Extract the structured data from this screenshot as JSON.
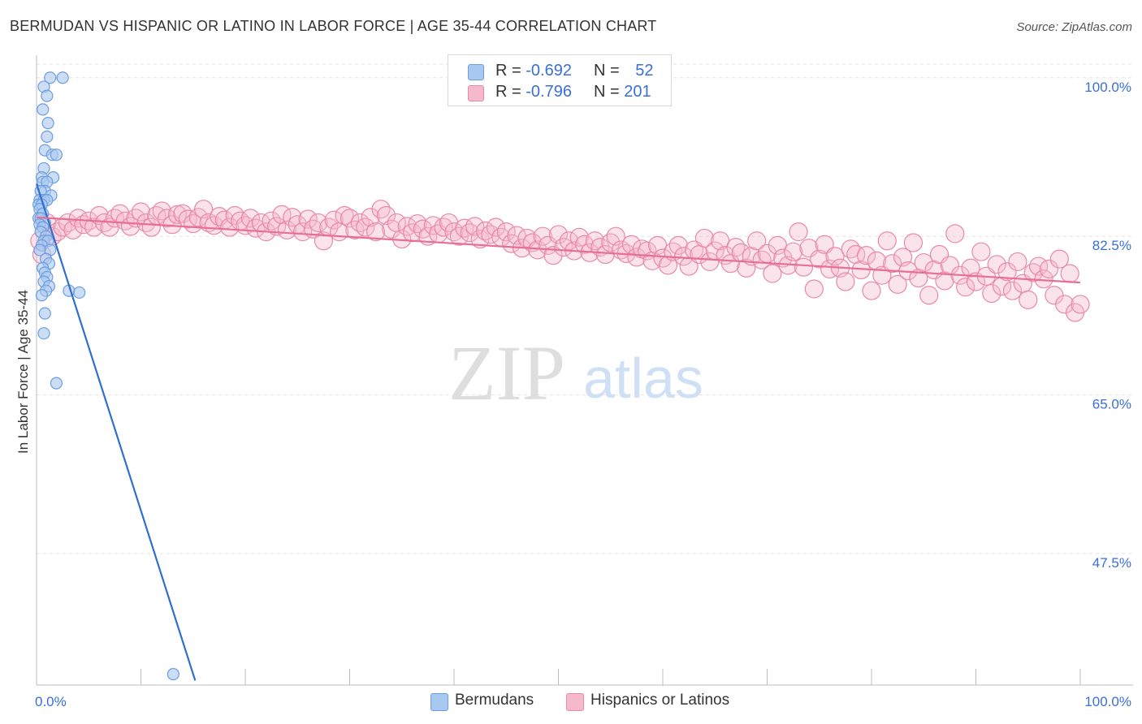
{
  "title": "BERMUDAN VS HISPANIC OR LATINO IN LABOR FORCE | AGE 35-44 CORRELATION CHART",
  "source": "Source: ZipAtlas.com",
  "watermark": {
    "zip": "ZIP",
    "atlas": "atlas"
  },
  "legend": {
    "rows": [
      {
        "r_label": "R = ",
        "r_value": "-0.692",
        "n_label": "N = ",
        "n_value": "52",
        "color": "#a9c8f0",
        "border": "#6d9de0"
      },
      {
        "r_label": "R = ",
        "r_value": "-0.796",
        "n_label": "N = ",
        "n_value": "201",
        "color": "#f6b9cc",
        "border": "#e889a7"
      }
    ]
  },
  "bottom_legend": [
    {
      "label": "Bermudans",
      "color": "#a9c8f0",
      "border": "#6d9de0"
    },
    {
      "label": "Hispanics or Latinos",
      "color": "#f6b9cc",
      "border": "#e889a7"
    }
  ],
  "chart_data": {
    "type": "scatter",
    "xlabel": "",
    "ylabel": "In Labor Force | Age 35-44",
    "xlim": [
      0,
      100
    ],
    "ylim": [
      33.0,
      101.5
    ],
    "x_tick_labels": [
      "0.0%",
      "100.0%"
    ],
    "y_ticks": [
      47.5,
      65.0,
      82.5,
      100.0
    ],
    "y_tick_labels": [
      "47.5%",
      "65.0%",
      "82.5%",
      "100.0%"
    ],
    "grid": true,
    "series": [
      {
        "name": "Bermudans",
        "color": "#6d9de0",
        "fill": "#a9c8f0",
        "line_color": "#2f6fd0",
        "trend": {
          "x": [
            0.0,
            15.2
          ],
          "y": [
            88.3,
            33.5
          ]
        },
        "points": [
          [
            1.3,
            100.0
          ],
          [
            2.5,
            100.0
          ],
          [
            0.7,
            99.0
          ],
          [
            1.0,
            98.0
          ],
          [
            0.6,
            96.5
          ],
          [
            1.1,
            95.0
          ],
          [
            1.0,
            93.5
          ],
          [
            0.8,
            92.0
          ],
          [
            1.5,
            91.5
          ],
          [
            1.9,
            91.5
          ],
          [
            0.7,
            90.0
          ],
          [
            0.5,
            89.0
          ],
          [
            1.6,
            89.0
          ],
          [
            0.6,
            88.5
          ],
          [
            1.0,
            88.5
          ],
          [
            0.8,
            87.5
          ],
          [
            0.4,
            87.5
          ],
          [
            1.4,
            87.0
          ],
          [
            0.3,
            86.5
          ],
          [
            0.7,
            86.5
          ],
          [
            1.0,
            86.5
          ],
          [
            0.2,
            86.0
          ],
          [
            0.5,
            86.0
          ],
          [
            0.3,
            85.5
          ],
          [
            0.6,
            85.0
          ],
          [
            0.2,
            84.5
          ],
          [
            0.4,
            84.5
          ],
          [
            0.8,
            84.0
          ],
          [
            0.3,
            83.8
          ],
          [
            0.6,
            83.5
          ],
          [
            0.4,
            83.0
          ],
          [
            0.9,
            82.5
          ],
          [
            0.7,
            82.0
          ],
          [
            1.1,
            82.0
          ],
          [
            0.5,
            81.5
          ],
          [
            1.3,
            81.0
          ],
          [
            0.3,
            81.0
          ],
          [
            0.9,
            80.0
          ],
          [
            1.2,
            79.5
          ],
          [
            0.6,
            79.0
          ],
          [
            0.8,
            78.5
          ],
          [
            1.0,
            78.0
          ],
          [
            0.7,
            77.5
          ],
          [
            1.2,
            77.0
          ],
          [
            0.9,
            76.5
          ],
          [
            0.5,
            76.0
          ],
          [
            3.1,
            76.5
          ],
          [
            4.1,
            76.3
          ],
          [
            0.8,
            74.0
          ],
          [
            0.7,
            71.8
          ],
          [
            1.9,
            66.3
          ],
          [
            13.1,
            34.2
          ]
        ]
      },
      {
        "name": "Hispanics or Latinos",
        "color": "#e889a7",
        "fill": "#f6b9cc",
        "line_color": "#e56f97",
        "trend": {
          "x": [
            0.0,
            100.0
          ],
          "y": [
            84.6,
            77.4
          ]
        },
        "points": [
          [
            0.3,
            82.0
          ],
          [
            0.5,
            80.5
          ],
          [
            1.0,
            84.0
          ],
          [
            1.5,
            82.5
          ],
          [
            2.0,
            83.0
          ],
          [
            2.5,
            83.5
          ],
          [
            3.0,
            84.0
          ],
          [
            3.5,
            83.2
          ],
          [
            4.0,
            84.5
          ],
          [
            4.5,
            83.8
          ],
          [
            5.0,
            84.2
          ],
          [
            5.5,
            83.5
          ],
          [
            6.0,
            84.8
          ],
          [
            6.5,
            84.0
          ],
          [
            7.0,
            83.5
          ],
          [
            7.5,
            84.5
          ],
          [
            8.0,
            85.0
          ],
          [
            8.5,
            84.2
          ],
          [
            9.0,
            83.6
          ],
          [
            9.5,
            84.5
          ],
          [
            10.0,
            85.2
          ],
          [
            10.5,
            84.0
          ],
          [
            11.0,
            83.5
          ],
          [
            11.5,
            84.8
          ],
          [
            12.0,
            85.3
          ],
          [
            12.5,
            84.5
          ],
          [
            13.0,
            83.8
          ],
          [
            13.5,
            84.9
          ],
          [
            14.0,
            85.0
          ],
          [
            14.5,
            84.4
          ],
          [
            15.0,
            83.9
          ],
          [
            15.5,
            84.6
          ],
          [
            16.0,
            85.5
          ],
          [
            16.5,
            84.0
          ],
          [
            17.0,
            83.7
          ],
          [
            17.5,
            84.7
          ],
          [
            18.0,
            84.3
          ],
          [
            18.5,
            83.5
          ],
          [
            19.0,
            84.8
          ],
          [
            19.5,
            84.2
          ],
          [
            20.0,
            83.7
          ],
          [
            20.5,
            84.5
          ],
          [
            21.0,
            83.4
          ],
          [
            21.5,
            84.0
          ],
          [
            22.0,
            83.0
          ],
          [
            22.5,
            84.2
          ],
          [
            23.0,
            83.6
          ],
          [
            23.5,
            84.9
          ],
          [
            24.0,
            83.2
          ],
          [
            24.5,
            84.6
          ],
          [
            25.0,
            83.8
          ],
          [
            25.5,
            83.0
          ],
          [
            26.0,
            84.4
          ],
          [
            26.5,
            83.3
          ],
          [
            27.0,
            84.0
          ],
          [
            27.5,
            82.0
          ],
          [
            28.0,
            83.5
          ],
          [
            28.5,
            84.3
          ],
          [
            29.0,
            83.0
          ],
          [
            29.5,
            84.8
          ],
          [
            30.0,
            84.5
          ],
          [
            30.5,
            83.2
          ],
          [
            31.0,
            84.0
          ],
          [
            31.5,
            83.5
          ],
          [
            32.0,
            84.6
          ],
          [
            32.5,
            83.0
          ],
          [
            33.0,
            85.5
          ],
          [
            33.5,
            84.8
          ],
          [
            34.0,
            83.3
          ],
          [
            34.5,
            84.0
          ],
          [
            35.0,
            82.2
          ],
          [
            35.5,
            83.6
          ],
          [
            36.0,
            82.9
          ],
          [
            36.5,
            83.9
          ],
          [
            37.0,
            83.3
          ],
          [
            37.5,
            82.5
          ],
          [
            38.0,
            83.7
          ],
          [
            38.5,
            82.8
          ],
          [
            39.0,
            83.5
          ],
          [
            39.5,
            84.0
          ],
          [
            40.0,
            83.0
          ],
          [
            40.5,
            82.5
          ],
          [
            41.0,
            83.4
          ],
          [
            41.5,
            82.9
          ],
          [
            42.0,
            83.6
          ],
          [
            42.5,
            82.2
          ],
          [
            43.0,
            83.1
          ],
          [
            43.5,
            82.7
          ],
          [
            44.0,
            83.5
          ],
          [
            44.5,
            82.4
          ],
          [
            45.0,
            83.0
          ],
          [
            45.5,
            81.7
          ],
          [
            46.0,
            82.6
          ],
          [
            46.5,
            81.2
          ],
          [
            47.0,
            82.3
          ],
          [
            47.5,
            81.8
          ],
          [
            48.0,
            81.0
          ],
          [
            48.5,
            82.5
          ],
          [
            49.0,
            81.5
          ],
          [
            49.5,
            80.4
          ],
          [
            50.0,
            82.7
          ],
          [
            50.5,
            81.3
          ],
          [
            51.0,
            82.0
          ],
          [
            51.5,
            80.9
          ],
          [
            52.0,
            82.4
          ],
          [
            52.5,
            81.6
          ],
          [
            53.0,
            80.7
          ],
          [
            53.5,
            82.0
          ],
          [
            54.0,
            81.3
          ],
          [
            54.5,
            80.5
          ],
          [
            55.0,
            81.8
          ],
          [
            55.5,
            82.5
          ],
          [
            56.0,
            81.0
          ],
          [
            56.5,
            80.6
          ],
          [
            57.0,
            81.6
          ],
          [
            57.5,
            80.2
          ],
          [
            58.0,
            81.1
          ],
          [
            58.5,
            80.9
          ],
          [
            59.0,
            79.8
          ],
          [
            59.5,
            81.5
          ],
          [
            60.0,
            80.1
          ],
          [
            60.5,
            79.3
          ],
          [
            61.0,
            80.8
          ],
          [
            61.5,
            81.5
          ],
          [
            62.0,
            80.3
          ],
          [
            62.5,
            79.2
          ],
          [
            63.0,
            81.0
          ],
          [
            63.5,
            80.5
          ],
          [
            64.0,
            82.3
          ],
          [
            64.5,
            79.7
          ],
          [
            65.0,
            80.9
          ],
          [
            65.5,
            82.0
          ],
          [
            66.0,
            80.4
          ],
          [
            66.5,
            79.5
          ],
          [
            67.0,
            81.3
          ],
          [
            67.5,
            80.7
          ],
          [
            68.0,
            79.0
          ],
          [
            68.5,
            80.3
          ],
          [
            69.0,
            82.0
          ],
          [
            69.5,
            79.9
          ],
          [
            70.0,
            80.6
          ],
          [
            70.5,
            78.4
          ],
          [
            71.0,
            81.5
          ],
          [
            71.5,
            80.1
          ],
          [
            72.0,
            79.3
          ],
          [
            72.5,
            80.8
          ],
          [
            73.0,
            83.0
          ],
          [
            73.5,
            79.1
          ],
          [
            74.0,
            81.2
          ],
          [
            74.5,
            76.7
          ],
          [
            75.0,
            80.0
          ],
          [
            75.5,
            81.6
          ],
          [
            76.0,
            78.9
          ],
          [
            76.5,
            80.3
          ],
          [
            77.0,
            79.0
          ],
          [
            77.5,
            77.5
          ],
          [
            78.0,
            81.1
          ],
          [
            78.5,
            80.5
          ],
          [
            79.0,
            78.8
          ],
          [
            79.5,
            80.4
          ],
          [
            80.0,
            76.5
          ],
          [
            80.5,
            79.8
          ],
          [
            81.0,
            78.2
          ],
          [
            81.5,
            82.0
          ],
          [
            82.0,
            79.5
          ],
          [
            82.5,
            77.2
          ],
          [
            83.0,
            80.2
          ],
          [
            83.5,
            78.7
          ],
          [
            84.0,
            81.8
          ],
          [
            84.5,
            77.9
          ],
          [
            85.0,
            79.6
          ],
          [
            85.5,
            76.0
          ],
          [
            86.0,
            78.8
          ],
          [
            86.5,
            80.5
          ],
          [
            87.0,
            77.6
          ],
          [
            87.5,
            79.3
          ],
          [
            88.0,
            82.8
          ],
          [
            88.5,
            78.2
          ],
          [
            89.0,
            76.9
          ],
          [
            89.5,
            79.0
          ],
          [
            90.0,
            77.5
          ],
          [
            90.5,
            80.8
          ],
          [
            91.0,
            78.1
          ],
          [
            91.5,
            76.2
          ],
          [
            92.0,
            79.4
          ],
          [
            92.5,
            77.0
          ],
          [
            93.0,
            78.6
          ],
          [
            93.5,
            76.5
          ],
          [
            94.0,
            79.7
          ],
          [
            94.5,
            77.3
          ],
          [
            95.0,
            75.5
          ],
          [
            95.5,
            78.5
          ],
          [
            96.0,
            79.2
          ],
          [
            96.5,
            77.8
          ],
          [
            97.0,
            78.9
          ],
          [
            97.5,
            76.0
          ],
          [
            98.0,
            80.0
          ],
          [
            98.5,
            75.0
          ],
          [
            99.0,
            78.4
          ],
          [
            99.5,
            74.1
          ],
          [
            100.0,
            75.0
          ]
        ]
      }
    ]
  }
}
